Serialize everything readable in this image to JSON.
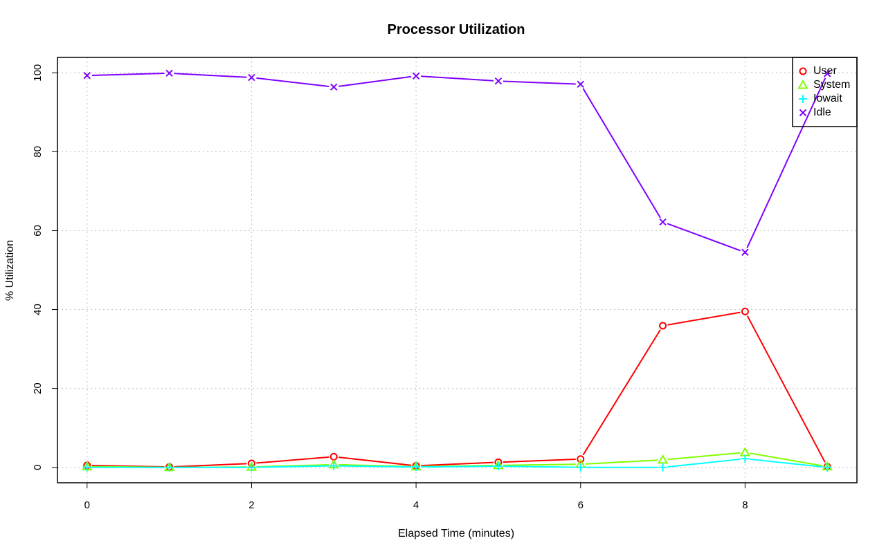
{
  "chart_data": {
    "type": "line",
    "title": "Processor Utilization",
    "xlabel": "Elapsed Time (minutes)",
    "ylabel": "% Utilization",
    "x": [
      0,
      1,
      2,
      3,
      4,
      5,
      6,
      7,
      8,
      9
    ],
    "xlim": [
      -0.36,
      9.36
    ],
    "ylim": [
      -3.9,
      103.9
    ],
    "x_ticks": [
      0,
      2,
      4,
      6,
      8
    ],
    "y_ticks": [
      0,
      20,
      40,
      60,
      80,
      100
    ],
    "grid": true,
    "legend_position": "top-right",
    "series": [
      {
        "name": "User",
        "color": "#ff0000",
        "marker": "circle",
        "values": [
          0.5,
          0.1,
          1.0,
          2.7,
          0.4,
          1.3,
          2.1,
          35.9,
          39.5,
          0.2
        ]
      },
      {
        "name": "System",
        "color": "#80ff00",
        "marker": "triangle",
        "values": [
          0.2,
          0.0,
          0.1,
          0.7,
          0.2,
          0.5,
          0.8,
          1.9,
          3.8,
          0.2
        ]
      },
      {
        "name": "Iowait",
        "color": "#00ffff",
        "marker": "plus",
        "values": [
          0.0,
          0.0,
          0.0,
          0.4,
          0.1,
          0.3,
          0.0,
          0.0,
          2.2,
          0.0
        ]
      },
      {
        "name": "Idle",
        "color": "#8000ff",
        "marker": "cross",
        "values": [
          99.3,
          99.9,
          98.8,
          96.4,
          99.2,
          97.9,
          97.1,
          62.2,
          54.5,
          99.8
        ]
      }
    ]
  }
}
